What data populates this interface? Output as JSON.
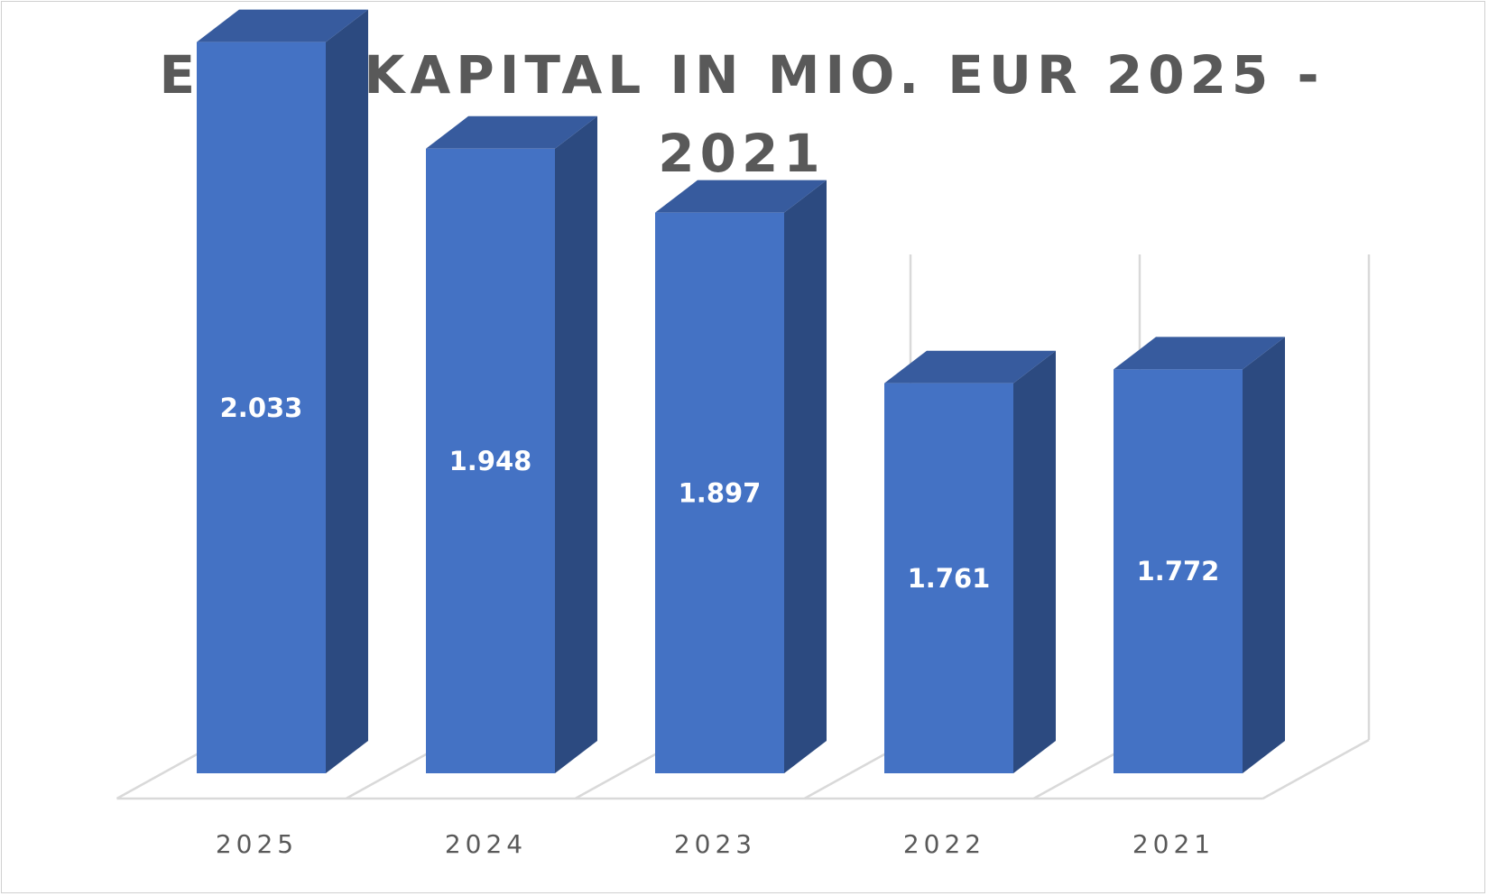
{
  "chart_data": {
    "type": "bar",
    "style": "3d-columns",
    "title": "EIGENKAPITAL IN MIO. EUR 2025 - 2021",
    "categories": [
      "2025",
      "2024",
      "2023",
      "2022",
      "2021"
    ],
    "values": [
      2033,
      1948,
      1897,
      1761,
      1772
    ],
    "data_labels": [
      "2.033",
      "1.948",
      "1.897",
      "1.761",
      "1.772"
    ],
    "xlabel": "",
    "ylabel": "",
    "ylim": [
      1400,
      2200
    ],
    "grid": "vertical",
    "legend": "none",
    "colors": {
      "front": "#4472c4",
      "top": "#375b9e",
      "side": "#2c4a80",
      "grid": "#d9d9d9",
      "text": "#595959",
      "label": "#ffffff"
    }
  }
}
